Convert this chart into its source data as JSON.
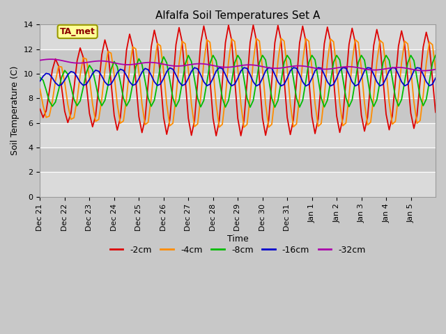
{
  "title": "Alfalfa Soil Temperatures Set A",
  "xlabel": "Time",
  "ylabel": "Soil Temperature (C)",
  "ylim": [
    0,
    14
  ],
  "yticks": [
    0,
    2,
    4,
    6,
    8,
    10,
    12,
    14
  ],
  "annotation_text": "TA_met",
  "annotation_color": "#8B0000",
  "annotation_bg": "#FFFF99",
  "annotation_edge": "#999900",
  "line_colors": {
    "-2cm": "#DD0000",
    "-4cm": "#FF8C00",
    "-8cm": "#00BB00",
    "-16cm": "#0000CC",
    "-32cm": "#AA00AA"
  },
  "legend_labels": [
    "-2cm",
    "-4cm",
    "-8cm",
    "-16cm",
    "-32cm"
  ],
  "fig_facecolor": "#C8C8C8",
  "plot_facecolor": "#E0E0E0",
  "grid_color": "#FFFFFF",
  "title_fontsize": 11,
  "label_fontsize": 9,
  "tick_fontsize": 8
}
